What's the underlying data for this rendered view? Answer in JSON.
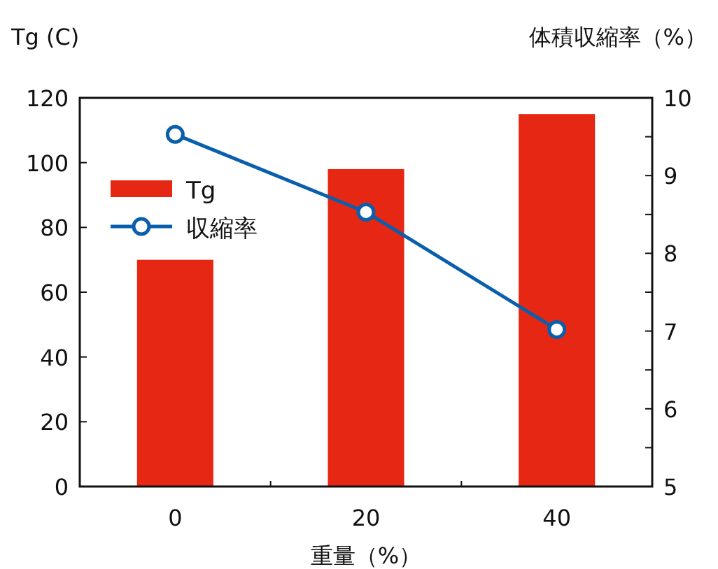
{
  "chart_data": {
    "type": "bar",
    "categories": [
      "0",
      "20",
      "40"
    ],
    "ylabel": "Tg (C)",
    "y2label": "体積収縮率（%）",
    "xlabel": "重量（%）",
    "series": [
      {
        "name": "Tg",
        "color": "#e52713",
        "values": [
          70,
          98,
          115
        ]
      },
      {
        "name": "収縮率",
        "type": "line",
        "axis": "y2",
        "color": "#0a5fac",
        "marker": "circle",
        "values": [
          9.53,
          8.53,
          7.02
        ]
      }
    ],
    "ylim": [
      0,
      120
    ],
    "yticks": [
      0,
      20,
      40,
      60,
      80,
      100,
      120
    ],
    "y2lim": [
      5,
      10
    ],
    "y2ticks": [
      5,
      {
        "value": 5.5,
        "label": null
      },
      6,
      {
        "value": 6.5,
        "label": null
      },
      7,
      {
        "value": 7.5,
        "label": null
      },
      8,
      {
        "value": 8.5,
        "label": null
      },
      9,
      {
        "value": 9.5,
        "label": null
      },
      10
    ],
    "legend": "top left",
    "grid": false
  }
}
